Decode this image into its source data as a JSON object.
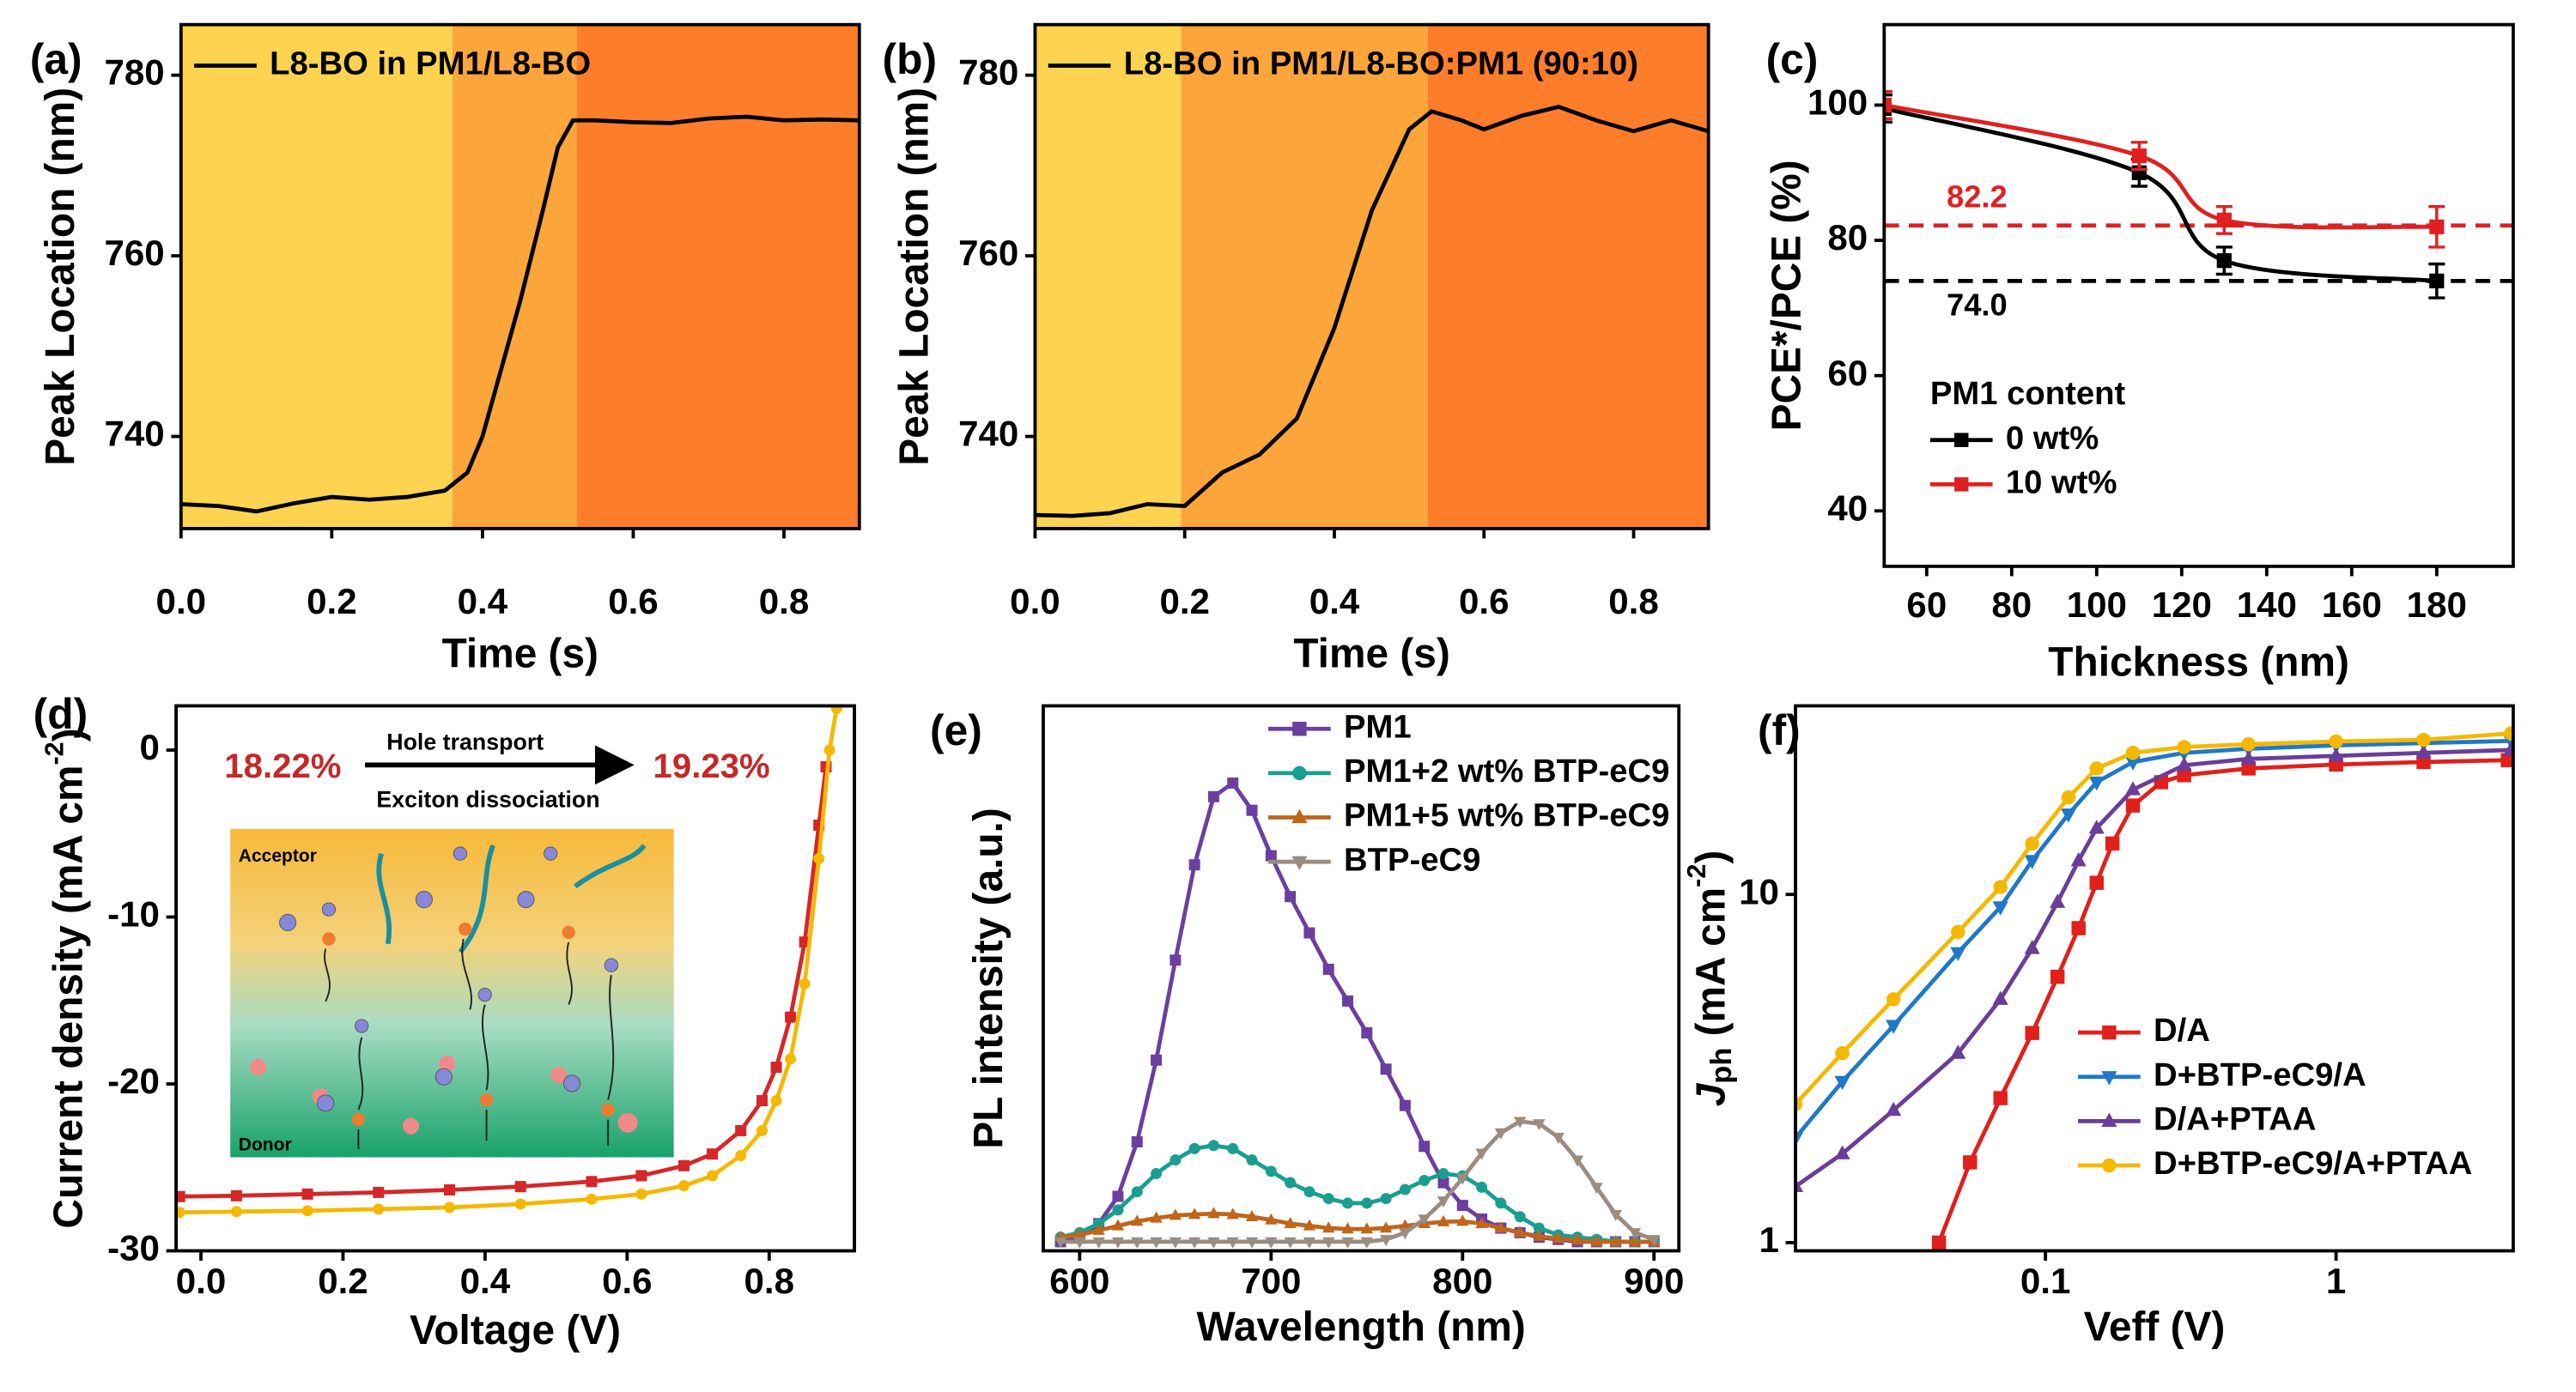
{
  "chart_data": [
    {
      "panel": "(a)",
      "type": "line",
      "xlabel": "Time (s)",
      "ylabel": {
        "base": "Peak Location (nm)"
      },
      "xlim": [
        0,
        0.9
      ],
      "ylim": [
        729.8,
        785.6
      ],
      "xticks": [
        {
          "value": 0,
          "label": "0.0"
        },
        0.2,
        0.4,
        0.6,
        0.8
      ],
      "yticks": [
        740,
        760,
        780
      ],
      "legend": "upper left",
      "regions": [
        {
          "start": 0,
          "end": 0.36,
          "color": "#fdd34f"
        },
        {
          "start": 0.36,
          "end": 0.525,
          "color": "#fba53a"
        },
        {
          "start": 0.525,
          "end": 0.9,
          "color": "#fe7d2b"
        }
      ],
      "series": [
        {
          "name": "L8-BO in PM1/L8-BO",
          "color": "#000000",
          "x": [
            0,
            0.05,
            0.1,
            0.15,
            0.2,
            0.25,
            0.3,
            0.35,
            0.38,
            0.4,
            0.42,
            0.45,
            0.48,
            0.5,
            0.52,
            0.55,
            0.6,
            0.65,
            0.7,
            0.75,
            0.8,
            0.85,
            0.9
          ],
          "values": [
            732.5,
            732.3,
            731.7,
            732.6,
            733.3,
            733,
            733.3,
            734,
            736,
            740,
            746,
            755,
            765,
            772,
            775,
            775,
            774.8,
            774.7,
            775.2,
            775.4,
            775,
            775.1,
            775
          ]
        }
      ]
    },
    {
      "panel": "(b)",
      "type": "line",
      "xlabel": "Time (s)",
      "ylabel": {
        "base": "Peak Location (nm)"
      },
      "xlim": [
        0,
        0.9
      ],
      "ylim": [
        729.8,
        785.6
      ],
      "xticks": [
        {
          "value": 0,
          "label": "0.0"
        },
        0.2,
        0.4,
        0.6,
        0.8
      ],
      "yticks": [
        740,
        760,
        780
      ],
      "legend": "upper left",
      "regions": [
        {
          "start": 0,
          "end": 0.195,
          "color": "#fdd34f"
        },
        {
          "start": 0.195,
          "end": 0.525,
          "color": "#fba53a"
        },
        {
          "start": 0.525,
          "end": 0.9,
          "color": "#fe7d2b"
        }
      ],
      "series": [
        {
          "name": "L8-BO in PM1/L8-BO:PM1 (90:10)",
          "color": "#000000",
          "x": [
            0,
            0.05,
            0.1,
            0.15,
            0.2,
            0.25,
            0.3,
            0.35,
            0.4,
            0.45,
            0.5,
            0.53,
            0.57,
            0.6,
            0.65,
            0.7,
            0.75,
            0.8,
            0.85,
            0.9
          ],
          "values": [
            731.3,
            731.2,
            731.5,
            732.5,
            732.3,
            736,
            738,
            742,
            752,
            765,
            774,
            776,
            775,
            774,
            775.5,
            776.5,
            775,
            773.8,
            775,
            773.8
          ]
        }
      ]
    },
    {
      "panel": "(c)",
      "type": "line",
      "xlabel": "Thickness (nm)",
      "ylabel": {
        "base": "PCE*/PCE (%)"
      },
      "xlim": [
        50,
        198
      ],
      "ylim": [
        31.8,
        111.9
      ],
      "xticks": [
        60,
        80,
        100,
        120,
        140,
        160,
        180
      ],
      "yticks": [
        40,
        60,
        80,
        100
      ],
      "legend": "center left",
      "legend_title": "PM1 content",
      "hlines": [
        {
          "value": 82.2,
          "label": "82.2",
          "color": "#e02020"
        },
        {
          "value": 74.0,
          "label": "74.0",
          "color": "#000000"
        }
      ],
      "series": [
        {
          "name": "0 wt%",
          "color": "#000000",
          "marker": "square",
          "smooth": true,
          "x": [
            50,
            110,
            130,
            180
          ],
          "values": [
            99.5,
            90,
            77,
            74
          ],
          "errors": [
            2,
            2,
            2,
            2.5
          ]
        },
        {
          "name": "10 wt%",
          "color": "#e02020",
          "marker": "square",
          "smooth": true,
          "x": [
            50,
            110,
            130,
            180
          ],
          "values": [
            100,
            92.5,
            83,
            82
          ],
          "errors": [
            2,
            2,
            2,
            3
          ]
        }
      ]
    },
    {
      "panel": "(d)",
      "type": "line",
      "xlabel": "Voltage (V)",
      "ylabel": {
        "base": "Current density (mA cm",
        "sup": "-2",
        "end": ")"
      },
      "xlim": [
        -0.035,
        0.92
      ],
      "ylim": [
        -30,
        2.65
      ],
      "xticks": [
        {
          "value": 0,
          "label": "0.0"
        },
        0.2,
        0.4,
        0.6,
        0.8
      ],
      "yticks": [
        -30,
        -20,
        -10,
        0
      ],
      "annotations": [
        "18.22%",
        "Hole transport",
        "Exciton dissociation",
        "19.23%",
        "Acceptor",
        "Donor"
      ],
      "series": [
        {
          "color": "#d62728",
          "marker": "square",
          "x": [
            -0.03,
            0.05,
            0.15,
            0.25,
            0.35,
            0.45,
            0.55,
            0.62,
            0.68,
            0.72,
            0.76,
            0.79,
            0.81,
            0.83,
            0.85,
            0.87,
            0.88
          ],
          "values": [
            -26.75,
            -26.7,
            -26.6,
            -26.5,
            -26.35,
            -26.15,
            -25.85,
            -25.5,
            -24.9,
            -24.2,
            -22.8,
            -21,
            -19,
            -16,
            -11.5,
            -4.5,
            -1
          ]
        },
        {
          "color": "#f5b800",
          "marker": "circle",
          "x": [
            -0.03,
            0.05,
            0.15,
            0.25,
            0.35,
            0.45,
            0.55,
            0.62,
            0.68,
            0.72,
            0.76,
            0.79,
            0.81,
            0.83,
            0.85,
            0.87,
            0.885,
            0.895
          ],
          "values": [
            -27.7,
            -27.65,
            -27.6,
            -27.5,
            -27.4,
            -27.2,
            -26.9,
            -26.6,
            -26.1,
            -25.5,
            -24.3,
            -22.8,
            -21,
            -18.5,
            -14,
            -6.5,
            0,
            2.5
          ]
        }
      ]
    },
    {
      "panel": "(e)",
      "type": "line",
      "xlabel": "Wavelength (nm)",
      "ylabel": {
        "base": "PL intensity (a.u.)"
      },
      "xlim": [
        581,
        913
      ],
      "ylim": [
        0,
        1.2
      ],
      "xticks": [
        600,
        700,
        800,
        900
      ],
      "legend": "upper right",
      "series": [
        {
          "name": "PM1",
          "color": "#6b3fa0",
          "marker": "square",
          "x": [
            590,
            600,
            610,
            620,
            630,
            640,
            650,
            660,
            670,
            680,
            690,
            700,
            710,
            720,
            730,
            740,
            750,
            760,
            770,
            780,
            790,
            800,
            810,
            820,
            830,
            840,
            850,
            860,
            870,
            880,
            890,
            900
          ],
          "values": [
            0.02,
            0.03,
            0.06,
            0.12,
            0.24,
            0.42,
            0.64,
            0.85,
            1.0,
            1.03,
            0.97,
            0.87,
            0.78,
            0.7,
            0.62,
            0.55,
            0.48,
            0.4,
            0.32,
            0.23,
            0.15,
            0.1,
            0.07,
            0.05,
            0.04,
            0.03,
            0.025,
            0.02,
            0.02,
            0.02,
            0.02,
            0.02
          ]
        },
        {
          "name": "PM1+2 wt% BTP-eC9",
          "color": "#1a9e8f",
          "marker": "circle",
          "x": [
            590,
            600,
            610,
            620,
            630,
            640,
            650,
            660,
            670,
            680,
            690,
            700,
            710,
            720,
            730,
            740,
            750,
            760,
            770,
            780,
            790,
            800,
            810,
            820,
            830,
            840,
            850,
            860,
            870,
            880,
            890,
            900
          ],
          "values": [
            0.03,
            0.04,
            0.06,
            0.09,
            0.13,
            0.17,
            0.2,
            0.225,
            0.232,
            0.225,
            0.2,
            0.175,
            0.15,
            0.13,
            0.115,
            0.105,
            0.105,
            0.115,
            0.135,
            0.155,
            0.17,
            0.165,
            0.14,
            0.105,
            0.075,
            0.05,
            0.035,
            0.03,
            0.025,
            0.02,
            0.02,
            0.02
          ]
        },
        {
          "name": "PM1+5 wt% BTP-eC9",
          "color": "#c0651a",
          "marker": "triangle-up",
          "x": [
            590,
            600,
            610,
            620,
            630,
            640,
            650,
            660,
            670,
            680,
            690,
            700,
            710,
            720,
            730,
            740,
            750,
            760,
            770,
            780,
            790,
            800,
            810,
            820,
            830,
            840,
            850,
            860,
            870,
            880,
            890,
            900
          ],
          "values": [
            0.03,
            0.035,
            0.045,
            0.055,
            0.065,
            0.072,
            0.078,
            0.08,
            0.082,
            0.08,
            0.075,
            0.068,
            0.06,
            0.055,
            0.05,
            0.048,
            0.048,
            0.05,
            0.055,
            0.06,
            0.064,
            0.065,
            0.06,
            0.05,
            0.04,
            0.032,
            0.027,
            0.023,
            0.02,
            0.02,
            0.02,
            0.02
          ]
        },
        {
          "name": "BTP-eC9",
          "color": "#9a8c80",
          "marker": "triangle-down",
          "x": [
            590,
            600,
            610,
            620,
            630,
            640,
            650,
            660,
            670,
            680,
            690,
            700,
            710,
            720,
            730,
            740,
            750,
            760,
            770,
            780,
            790,
            800,
            810,
            820,
            830,
            840,
            850,
            860,
            870,
            880,
            890,
            900
          ],
          "values": [
            0.02,
            0.02,
            0.02,
            0.02,
            0.02,
            0.02,
            0.02,
            0.02,
            0.02,
            0.02,
            0.02,
            0.02,
            0.02,
            0.02,
            0.02,
            0.02,
            0.02,
            0.025,
            0.04,
            0.07,
            0.11,
            0.16,
            0.215,
            0.26,
            0.285,
            0.28,
            0.25,
            0.2,
            0.14,
            0.08,
            0.04,
            0.025
          ]
        }
      ]
    },
    {
      "panel": "(f)",
      "type": "line",
      "xlabel": "Veff (V)",
      "ylabel": {
        "base": "J",
        "sub": "ph",
        "rest": " (mA cm",
        "sup": "-2",
        "end": ")"
      },
      "xscale": "log",
      "yscale": "log",
      "xlim": [
        0.0138,
        4.07
      ],
      "ylim": [
        0.947,
        34.8
      ],
      "xticks": [
        0.1,
        1
      ],
      "yticks": [
        1,
        10
      ],
      "legend": "lower right",
      "series": [
        {
          "name": "D/A",
          "color": "#e0201b",
          "marker": "square",
          "x": [
            0.043,
            0.055,
            0.07,
            0.09,
            0.11,
            0.13,
            0.15,
            0.17,
            0.2,
            0.25,
            0.3,
            0.5,
            1,
            2,
            3.9
          ],
          "values": [
            1.0,
            1.7,
            2.6,
            4.0,
            5.8,
            8.0,
            10.8,
            14,
            18,
            21,
            22,
            23,
            23.6,
            24,
            24.3
          ]
        },
        {
          "name": "D+BTP-eC9/A",
          "color": "#1f78c8",
          "marker": "triangle-down",
          "x": [
            0.0138,
            0.02,
            0.03,
            0.05,
            0.07,
            0.09,
            0.12,
            0.15,
            0.2,
            0.3,
            0.5,
            1,
            2,
            4
          ],
          "values": [
            2.0,
            2.9,
            4.2,
            6.8,
            9.2,
            12.5,
            17,
            21,
            24,
            25.5,
            26.2,
            26.8,
            27.2,
            27.6
          ]
        },
        {
          "name": "D/A+PTAA",
          "color": "#6a3d9a",
          "marker": "triangle-up",
          "x": [
            0.0138,
            0.02,
            0.03,
            0.05,
            0.07,
            0.09,
            0.11,
            0.13,
            0.15,
            0.2,
            0.3,
            0.5,
            1,
            2,
            4
          ],
          "values": [
            1.45,
            1.8,
            2.4,
            3.5,
            5,
            7,
            9.5,
            12.5,
            15.5,
            20,
            23.5,
            24.5,
            25,
            25.5,
            26
          ]
        },
        {
          "name": "D+BTP-eC9/A+PTAA",
          "color": "#f5b800",
          "marker": "circle",
          "x": [
            0.0138,
            0.02,
            0.03,
            0.05,
            0.07,
            0.09,
            0.12,
            0.15,
            0.2,
            0.3,
            0.5,
            1,
            2,
            4
          ],
          "values": [
            2.5,
            3.5,
            5,
            7.8,
            10.5,
            14,
            19,
            23,
            25.5,
            26.5,
            27,
            27.5,
            27.8,
            29
          ]
        }
      ]
    }
  ]
}
